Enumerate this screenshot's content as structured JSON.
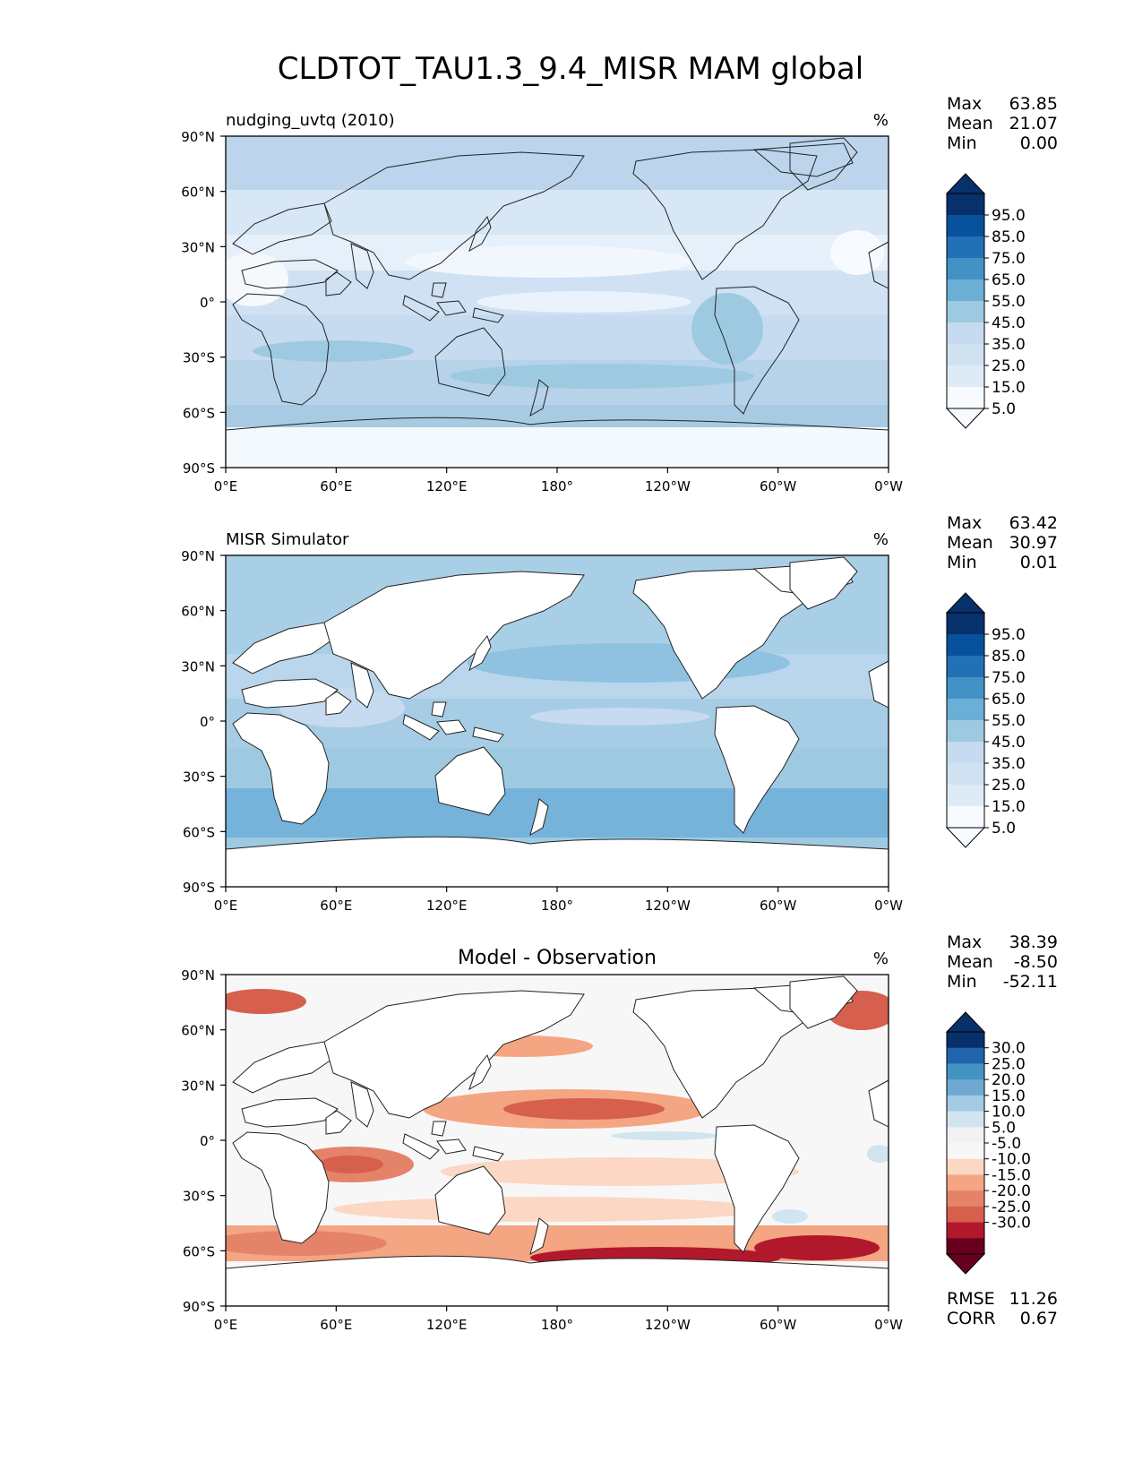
{
  "title": "CLDTOT_TAU1.3_9.4_MISR MAM global",
  "xticks": [
    "0°E",
    "60°E",
    "120°E",
    "180°",
    "120°W",
    "60°W",
    "0°W"
  ],
  "yticks": [
    "90°N",
    "60°N",
    "30°N",
    "0°",
    "30°S",
    "60°S",
    "90°S"
  ],
  "colors": {
    "blues": [
      "#f7fbff",
      "#deebf7",
      "#d0e1f2",
      "#c6dbef",
      "#9ecae1",
      "#6baed6",
      "#4292c6",
      "#2171b5",
      "#08519c",
      "#08306b"
    ],
    "diff": [
      "#67001f",
      "#b2182b",
      "#d6604d",
      "#e5836a",
      "#f4a582",
      "#fbd7c4",
      "#f7f7f7",
      "#f2f2f2",
      "#d1e5f0",
      "#a3cbe3",
      "#6fa8d1",
      "#4393c3",
      "#2166ac",
      "#08306b"
    ],
    "land": "#ffffff"
  },
  "chart_data": [
    {
      "type": "heatmap",
      "name": "test",
      "left_label": "nudging_uvtq (2010)",
      "units": "%",
      "stats": [
        [
          "Max",
          "63.85"
        ],
        [
          "Mean",
          "21.07"
        ],
        [
          "Min",
          "0.00"
        ]
      ],
      "colorbar_labels": [
        "95.0",
        "85.0",
        "75.0",
        "65.0",
        "55.0",
        "45.0",
        "35.0",
        "25.0",
        "15.0",
        "5.0"
      ],
      "lat_range": [
        -90,
        90
      ],
      "lon_range": [
        0,
        360
      ]
    },
    {
      "type": "heatmap",
      "name": "reference",
      "left_label": "MISR Simulator",
      "units": "%",
      "stats": [
        [
          "Max",
          "63.42"
        ],
        [
          "Mean",
          "30.97"
        ],
        [
          "Min",
          "0.01"
        ]
      ],
      "colorbar_labels": [
        "95.0",
        "85.0",
        "75.0",
        "65.0",
        "55.0",
        "45.0",
        "35.0",
        "25.0",
        "15.0",
        "5.0"
      ],
      "lat_range": [
        -90,
        90
      ],
      "lon_range": [
        0,
        360
      ]
    },
    {
      "type": "heatmap",
      "name": "diff",
      "center_label": "Model - Observation",
      "units": "%",
      "stats": [
        [
          "Max",
          "38.39"
        ],
        [
          "Mean",
          "-8.50"
        ],
        [
          "Min",
          "-52.11"
        ]
      ],
      "colorbar_labels": [
        "30.0",
        "25.0",
        "20.0",
        "15.0",
        "10.0",
        "5.0",
        "-5.0",
        "-10.0",
        "-15.0",
        "-20.0",
        "-25.0",
        "-30.0"
      ],
      "extra_stats": [
        [
          "RMSE",
          "11.26"
        ],
        [
          "CORR",
          "0.67"
        ]
      ],
      "lat_range": [
        -90,
        90
      ],
      "lon_range": [
        0,
        360
      ]
    }
  ]
}
